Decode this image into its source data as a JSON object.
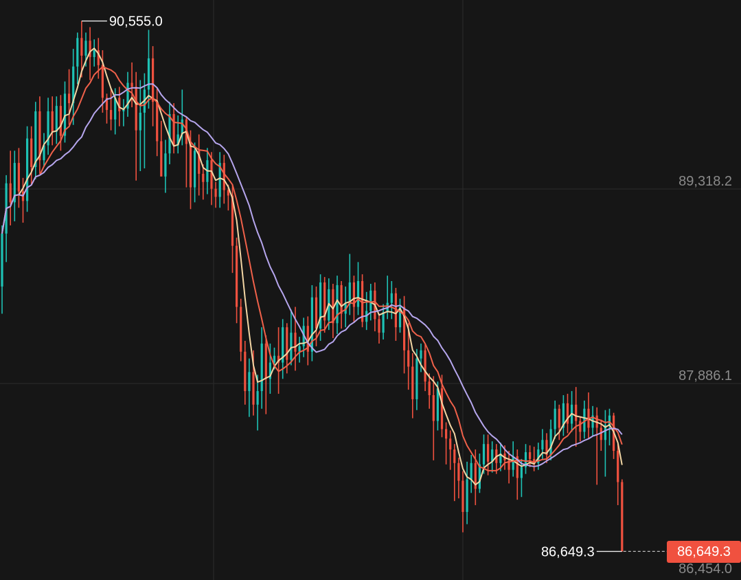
{
  "chart_data": {
    "type": "candlestick",
    "title": "",
    "y_tick_labels": [
      "89,318.2",
      "87,886.1",
      "86,454.0"
    ],
    "ylim": [
      86454.0,
      90750.0
    ],
    "gridlines": true,
    "annotations": {
      "high_label": "90,555.0",
      "low_label": "86,649.3",
      "last_price_tag": "86,649.3"
    },
    "candles": [
      [
        88600,
        88990,
        88400,
        89050
      ],
      [
        88990,
        89360,
        88780,
        89420
      ],
      [
        89360,
        89220,
        89050,
        89600
      ],
      [
        89220,
        89510,
        89080,
        89600
      ],
      [
        89510,
        89300,
        89180,
        89620
      ],
      [
        89300,
        89230,
        89070,
        89400
      ],
      [
        89230,
        89690,
        89150,
        89780
      ],
      [
        89690,
        89480,
        89350,
        89780
      ],
      [
        89480,
        89890,
        89390,
        89960
      ],
      [
        89890,
        89530,
        89430,
        90000
      ],
      [
        89530,
        89640,
        89480,
        89730
      ],
      [
        89640,
        89890,
        89570,
        89990
      ],
      [
        89890,
        89740,
        89640,
        90000
      ],
      [
        89740,
        89930,
        89650,
        90000
      ],
      [
        89930,
        89710,
        89600,
        90010
      ],
      [
        89710,
        90020,
        89660,
        90110
      ],
      [
        90020,
        89950,
        89790,
        90200
      ],
      [
        89950,
        90220,
        89790,
        90350
      ],
      [
        90220,
        90430,
        90090,
        90470
      ],
      [
        90430,
        90300,
        90140,
        90555
      ],
      [
        90300,
        90410,
        90220,
        90470
      ],
      [
        90410,
        90290,
        90120,
        90510
      ],
      [
        90290,
        90340,
        90220,
        90420
      ],
      [
        90340,
        90230,
        90130,
        90430
      ],
      [
        90230,
        89990,
        89880,
        90340
      ],
      [
        89990,
        89900,
        89800,
        90020
      ],
      [
        89900,
        89830,
        89750,
        90060
      ],
      [
        89830,
        89990,
        89720,
        90060
      ],
      [
        89990,
        89890,
        89780,
        90070
      ],
      [
        89890,
        89910,
        89780,
        89980
      ],
      [
        89910,
        90100,
        89850,
        90180
      ],
      [
        90100,
        90070,
        89920,
        90250
      ],
      [
        90070,
        89750,
        89380,
        90180
      ],
      [
        89750,
        89880,
        89450,
        90120
      ],
      [
        89880,
        90050,
        89470,
        90170
      ],
      [
        90050,
        90280,
        89910,
        90490
      ],
      [
        90280,
        89960,
        89780,
        90370
      ],
      [
        89960,
        89670,
        89560,
        90060
      ],
      [
        89670,
        89410,
        89430,
        89820
      ],
      [
        89410,
        89580,
        89290,
        89680
      ],
      [
        89580,
        89870,
        89500,
        89960
      ],
      [
        89870,
        89640,
        89580,
        89950
      ],
      [
        89640,
        89720,
        89580,
        89860
      ],
      [
        89720,
        89830,
        89640,
        90050
      ],
      [
        89830,
        89650,
        89330,
        89850
      ],
      [
        89650,
        89330,
        89170,
        89750
      ],
      [
        89330,
        89600,
        89220,
        89660
      ],
      [
        89600,
        89430,
        89270,
        89720
      ],
      [
        89430,
        89370,
        89240,
        89500
      ],
      [
        89370,
        89530,
        89280,
        89620
      ],
      [
        89530,
        89320,
        89200,
        89590
      ],
      [
        89320,
        89260,
        89180,
        89370
      ],
      [
        89260,
        89510,
        89180,
        89590
      ],
      [
        89510,
        89310,
        89210,
        89570
      ],
      [
        89310,
        89270,
        89160,
        89350
      ],
      [
        89270,
        88900,
        88700,
        89350
      ],
      [
        88900,
        88450,
        88330,
        88960
      ],
      [
        88450,
        88120,
        88050,
        88510
      ],
      [
        88120,
        87830,
        87730,
        88200
      ],
      [
        87830,
        87970,
        87640,
        88070
      ],
      [
        87970,
        87730,
        87650,
        88130
      ],
      [
        87730,
        87830,
        87540,
        87950
      ],
      [
        87830,
        88180,
        87700,
        88300
      ],
      [
        88180,
        87920,
        87660,
        88240
      ],
      [
        87920,
        88040,
        87810,
        88180
      ],
      [
        88040,
        88090,
        87990,
        88150
      ],
      [
        88090,
        88040,
        87810,
        88300
      ],
      [
        88040,
        88300,
        87920,
        88360
      ],
      [
        88300,
        88060,
        87960,
        88330
      ],
      [
        88060,
        88260,
        88020,
        88430
      ],
      [
        88260,
        88120,
        87980,
        88450
      ],
      [
        88120,
        88160,
        88040,
        88230
      ],
      [
        88160,
        88310,
        88080,
        88370
      ],
      [
        88310,
        88120,
        88020,
        88380
      ],
      [
        88120,
        88520,
        88050,
        88610
      ],
      [
        88520,
        88290,
        88160,
        88600
      ],
      [
        88290,
        88630,
        88200,
        88690
      ],
      [
        88630,
        88350,
        88260,
        88670
      ],
      [
        88350,
        88580,
        88280,
        88660
      ],
      [
        88580,
        88330,
        88220,
        88620
      ],
      [
        88330,
        88610,
        88250,
        88680
      ],
      [
        88610,
        88400,
        88290,
        88640
      ],
      [
        88400,
        88470,
        88300,
        88600
      ],
      [
        88470,
        88630,
        88390,
        88840
      ],
      [
        88630,
        88450,
        88340,
        88680
      ],
      [
        88450,
        88640,
        88390,
        88780
      ],
      [
        88640,
        88340,
        88300,
        88690
      ],
      [
        88340,
        88420,
        88280,
        88560
      ],
      [
        88420,
        88570,
        88350,
        88620
      ],
      [
        88570,
        88360,
        88270,
        88630
      ],
      [
        88360,
        88260,
        88180,
        88400
      ],
      [
        88260,
        88410,
        88210,
        88470
      ],
      [
        88410,
        88480,
        88360,
        88680
      ],
      [
        88480,
        88550,
        88360,
        88640
      ],
      [
        88550,
        88300,
        88200,
        88590
      ],
      [
        88300,
        88450,
        88260,
        88510
      ],
      [
        88450,
        88130,
        87960,
        88530
      ],
      [
        88130,
        88010,
        87840,
        88330
      ],
      [
        88010,
        87770,
        87630,
        88110
      ],
      [
        87770,
        88070,
        87690,
        88140
      ],
      [
        88070,
        88130,
        87970,
        88180
      ],
      [
        88130,
        87900,
        87830,
        88180
      ],
      [
        87900,
        87800,
        87700,
        87960
      ],
      [
        87800,
        87610,
        87320,
        87940
      ],
      [
        87610,
        87850,
        87540,
        87900
      ],
      [
        87850,
        87550,
        87490,
        87950
      ],
      [
        87550,
        87480,
        87290,
        87600
      ],
      [
        87480,
        87400,
        87250,
        87540
      ],
      [
        87400,
        87300,
        87020,
        87440
      ],
      [
        87300,
        87170,
        87040,
        87340
      ],
      [
        87170,
        86940,
        86790,
        87240
      ],
      [
        86940,
        87180,
        86850,
        87310
      ],
      [
        87180,
        87300,
        87080,
        87360
      ],
      [
        87300,
        87110,
        86990,
        87400
      ],
      [
        87110,
        87290,
        87080,
        87370
      ],
      [
        87290,
        87440,
        87220,
        87510
      ],
      [
        87440,
        87310,
        87210,
        87510
      ],
      [
        87310,
        87400,
        87230,
        87460
      ],
      [
        87400,
        87300,
        87220,
        87440
      ],
      [
        87300,
        87370,
        87240,
        87450
      ],
      [
        87370,
        87320,
        87250,
        87430
      ],
      [
        87320,
        87250,
        87150,
        87390
      ],
      [
        87250,
        87350,
        87200,
        87460
      ],
      [
        87350,
        87190,
        87030,
        87400
      ],
      [
        87190,
        87270,
        87050,
        87330
      ],
      [
        87270,
        87380,
        87220,
        87440
      ],
      [
        87380,
        87330,
        87270,
        87430
      ],
      [
        87330,
        87300,
        87240,
        87420
      ],
      [
        87300,
        87400,
        87250,
        87450
      ],
      [
        87400,
        87470,
        87330,
        87550
      ],
      [
        87470,
        87360,
        87300,
        87520
      ],
      [
        87360,
        87550,
        87320,
        87620
      ],
      [
        87550,
        87700,
        87480,
        87760
      ],
      [
        87700,
        87560,
        87470,
        87730
      ],
      [
        87560,
        87740,
        87500,
        87800
      ],
      [
        87740,
        87590,
        87520,
        87810
      ],
      [
        87590,
        87730,
        87530,
        87830
      ],
      [
        87730,
        87610,
        87420,
        87860
      ],
      [
        87610,
        87530,
        87460,
        87640
      ],
      [
        87530,
        87700,
        87480,
        87760
      ],
      [
        87700,
        87560,
        87480,
        87820
      ],
      [
        87560,
        87650,
        87500,
        87720
      ],
      [
        87650,
        87560,
        87140,
        87710
      ],
      [
        87560,
        87470,
        87390,
        87620
      ],
      [
        87470,
        87580,
        87200,
        87690
      ],
      [
        87580,
        87650,
        87430,
        87700
      ],
      [
        87650,
        87390,
        87330,
        87670
      ],
      [
        87390,
        87160,
        86990,
        87440
      ],
      [
        87160,
        86649.3,
        86649.3,
        87180
      ]
    ],
    "ma": [
      {
        "name": "",
        "color": "#f3d6a4",
        "period": 5
      },
      {
        "name": "",
        "color": "#f0614a",
        "period": 10
      },
      {
        "name": "",
        "color": "#b6a6ee",
        "period": 20
      }
    ],
    "colors": {
      "up": "#1ec2b5",
      "down": "#f0513f",
      "background": "#161616",
      "grid": "#2c2c2c",
      "axis_text": "#8a8a8a",
      "label_text": "#ffffff",
      "marker_line": "#ececec"
    }
  }
}
